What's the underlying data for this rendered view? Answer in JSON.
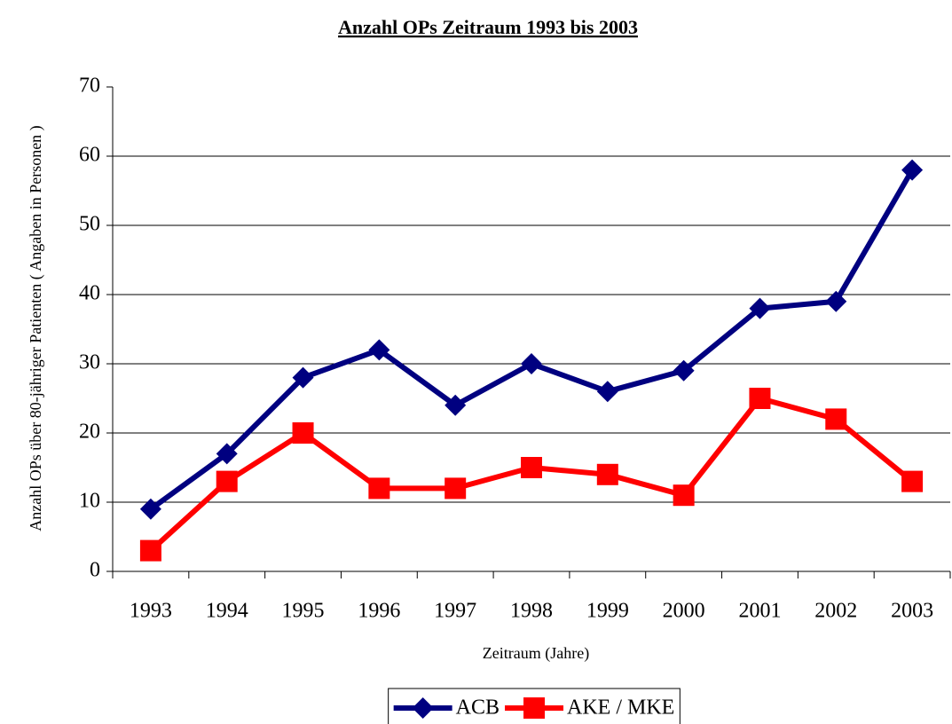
{
  "chart_data": {
    "type": "line",
    "title": "Anzahl OPs Zeitraum 1993 bis 2003",
    "x_label": "Zeitraum (Jahre)",
    "y_label": "Anzahl OPs über 80-jähriger Patienten ( Angaben in Personen )",
    "categories": [
      "1993",
      "1994",
      "1995",
      "1996",
      "1997",
      "1998",
      "1999",
      "2000",
      "2001",
      "2002",
      "2003"
    ],
    "series": [
      {
        "name": "ACB",
        "color": "#000080",
        "marker": "diamond",
        "values": [
          9,
          17,
          28,
          32,
          24,
          30,
          26,
          29,
          38,
          39,
          58
        ]
      },
      {
        "name": "AKE / MKE",
        "color": "#ff0000",
        "marker": "square",
        "values": [
          3,
          13,
          20,
          12,
          12,
          15,
          14,
          11,
          25,
          22,
          13
        ]
      }
    ],
    "ylim": [
      0,
      70
    ],
    "yticks": [
      0,
      10,
      20,
      30,
      40,
      50,
      60,
      70
    ],
    "grid": true,
    "legend": "bottom"
  }
}
